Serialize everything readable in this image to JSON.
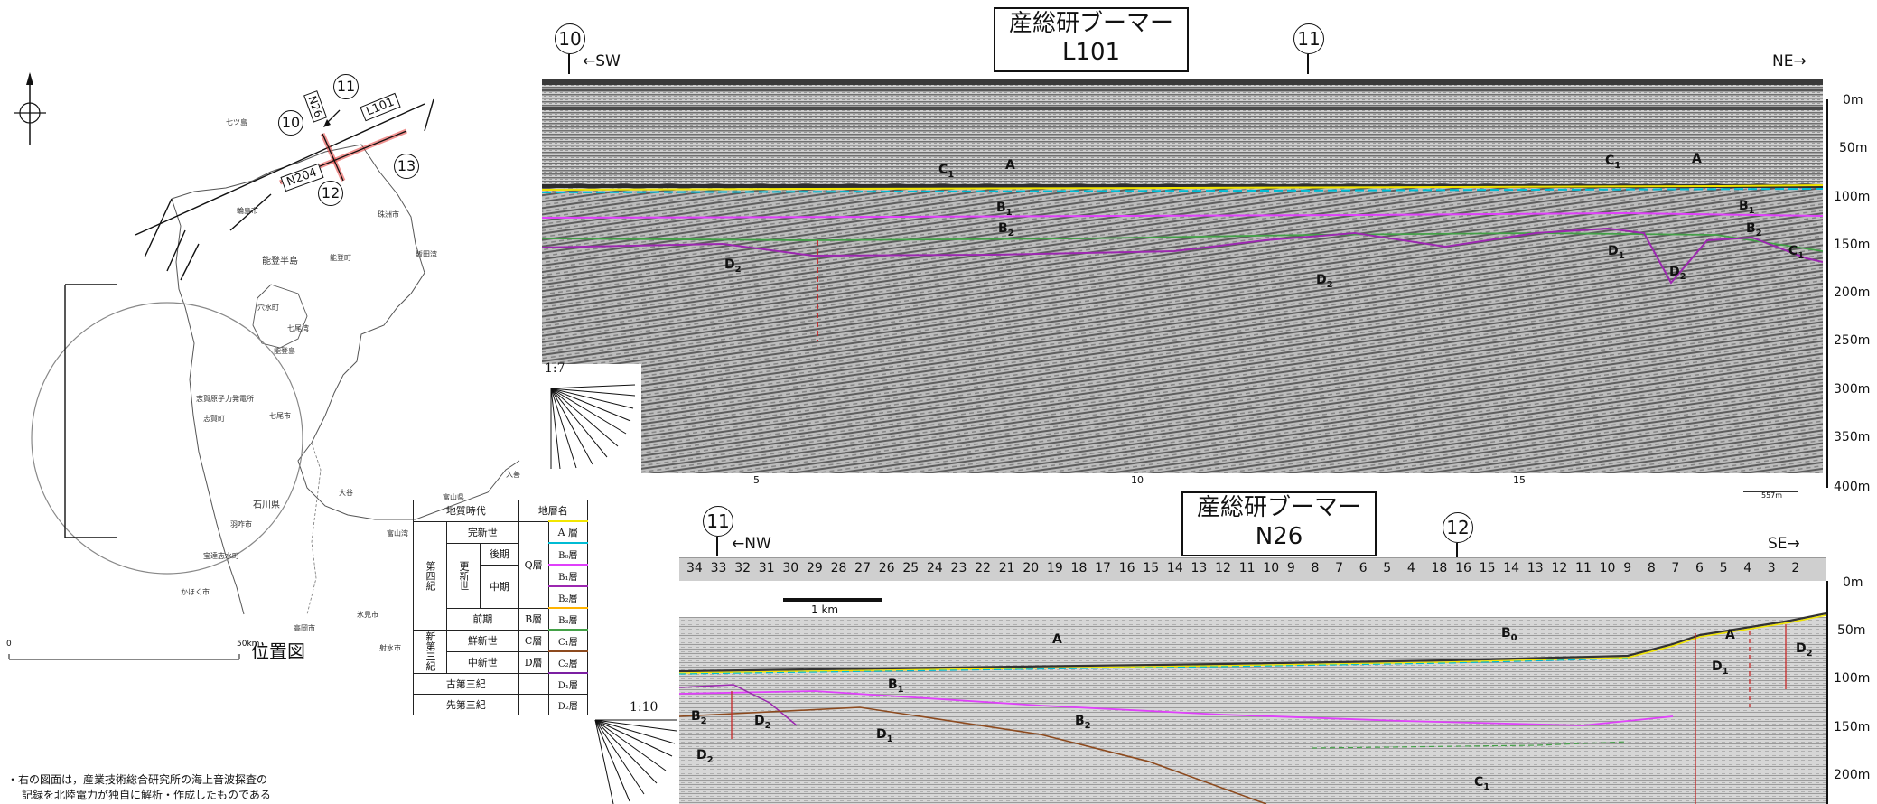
{
  "location_map": {
    "caption": "位置図",
    "scale_label": "50km",
    "scale_zero": "0",
    "place_labels": [
      "七ツ島",
      "輪島市",
      "穴水町",
      "七尾湾",
      "能登島",
      "志賀原子力発電所",
      "志賀町",
      "七尾市",
      "羽咋市",
      "石川県",
      "宝達志水町",
      "かほく市",
      "能登半島",
      "珠洲市",
      "飯田湾",
      "能登町",
      "大谷",
      "富山湾",
      "氷見市",
      "高岡市",
      "射水市",
      "富山県",
      "入善"
    ],
    "line_labels": {
      "n26": "N26",
      "l101": "L101",
      "n204": "N204"
    },
    "point_labels": {
      "p10": "10",
      "p11": "11",
      "p12": "12",
      "p13": "13"
    }
  },
  "stratigraphy_table": {
    "header_age": "地質時代",
    "header_name": "地層名",
    "rows": {
      "quaternary": "第四紀",
      "holocene": "完新世",
      "pleistocene": "更新世",
      "late": "後期",
      "middle": "中期",
      "early": "前期",
      "neogene": "新第三紀",
      "pliocene": "鮮新世",
      "miocene": "中新世",
      "paleogene": "古第三紀",
      "pre_tertiary": "先第三紀",
      "q_layer": "Q層",
      "b_layer": "B層",
      "c_layer": "C層",
      "d_layer": "D層",
      "a": "A 層",
      "b0": "B₀層",
      "b1": "B₁層",
      "b2": "B₂層",
      "b3": "B₃層",
      "c1": "C₁層",
      "c2": "C₂層",
      "d1": "D₁層",
      "d2": "D₂層"
    }
  },
  "note": [
    "・右の図面は，産業技術総合研究所の海上音波探査の",
    "記録を北陸電力が独自に解析・作成したものである"
  ],
  "profile_top": {
    "title": "産総研ブーマー",
    "line": "L101",
    "left_dir": "←SW",
    "right_dir": "NE→",
    "markers": {
      "left": "10",
      "mid": "11"
    },
    "ratio": "1:7",
    "km_ticks": [
      "5",
      "10",
      "15"
    ],
    "scale_bar_label": "557m",
    "depth_labels": [
      "0m",
      "50m",
      "100m",
      "150m",
      "200m",
      "250m",
      "300m",
      "350m",
      "400m"
    ],
    "layer_labels": {
      "a1": "A",
      "a2": "A",
      "b1a": "B",
      "b1b": "B",
      "b2a": "B",
      "b2b": "B",
      "c1a": "C",
      "c1b": "C",
      "c1c": "C",
      "d1": "D",
      "d2a": "D",
      "d2b": "D",
      "d2c": "D"
    }
  },
  "profile_bottom": {
    "title": "産総研ブーマー",
    "line": "N26",
    "left_dir": "←NW",
    "right_dir": "SE→",
    "markers": {
      "left": "11",
      "mid": "12"
    },
    "ratio": "1:10",
    "shot_numbers": [
      "34",
      "33",
      "32",
      "31",
      "30",
      "29",
      "28",
      "27",
      "26",
      "25",
      "24",
      "23",
      "22",
      "21",
      "20",
      "19",
      "18",
      "17",
      "16",
      "15",
      "14",
      "13",
      "12",
      "11",
      "10",
      "9",
      "8",
      "7",
      "6",
      "5",
      "4",
      "18",
      "16",
      "15",
      "14",
      "13",
      "12",
      "11",
      "10",
      "9",
      "8",
      "7",
      "6",
      "5",
      "4",
      "3",
      "2"
    ],
    "km_scale_label": "1 km",
    "depth_labels": [
      "0m",
      "50m",
      "100m",
      "150m",
      "200m"
    ],
    "layer_labels": {
      "a1": "A",
      "a2": "A",
      "b0": "B",
      "b1": "B",
      "b2a": "B",
      "b2b": "B",
      "c1": "C",
      "d1a": "D",
      "d1b": "D",
      "d2a": "D",
      "d2b": "D",
      "d2c": "D"
    }
  },
  "colors": {
    "a_layer": "#f2e600",
    "b0_layer": "#00bcd4",
    "b1_layer": "#e040fb",
    "b2_layer": "#9c27b0",
    "c1_layer": "#43a047",
    "c2_layer": "#8d4a1e",
    "d1_layer": "#7b1fa2",
    "fault": "#c62828",
    "survey_line": "#e53935"
  }
}
